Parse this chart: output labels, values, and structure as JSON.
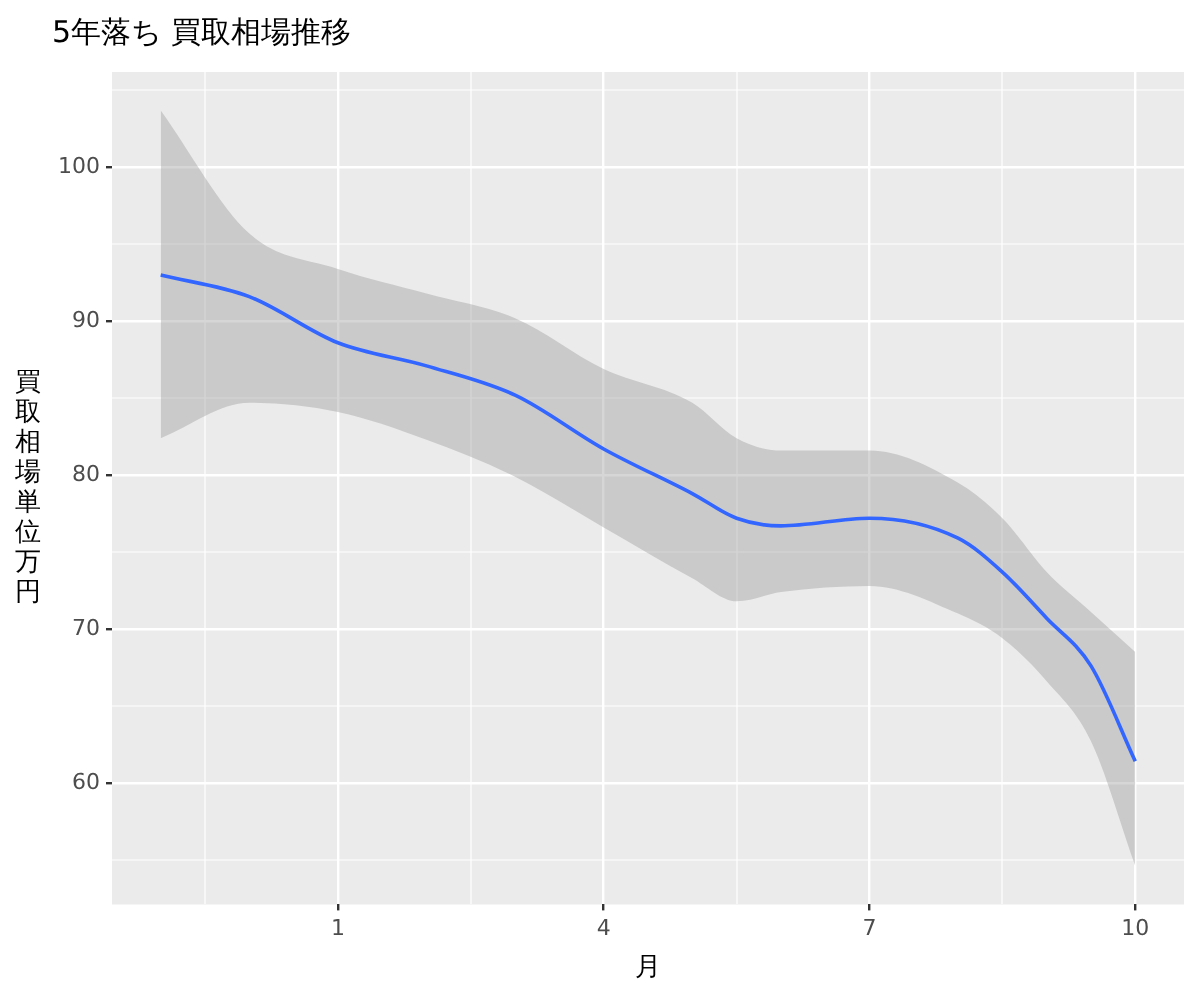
{
  "chart_data": {
    "type": "line",
    "title": "5年落ち 買取相場推移",
    "xlabel": "月",
    "ylabel": "買取相場単位万円",
    "xlim": [
      -1.55,
      10.55
    ],
    "ylim": [
      52.1,
      106.2
    ],
    "xticks": [
      {
        "value": -0.5,
        "label": null
      },
      1,
      {
        "value": 2.5,
        "label": null
      },
      4,
      {
        "value": 5.5,
        "label": null
      },
      7,
      {
        "value": 8.5,
        "label": null
      },
      10
    ],
    "yticks": [
      {
        "value": 55,
        "label": null
      },
      60,
      {
        "value": 65,
        "label": null
      },
      70,
      {
        "value": 75,
        "label": null
      },
      80,
      {
        "value": 85,
        "label": null
      },
      90,
      {
        "value": 95,
        "label": null
      },
      100,
      {
        "value": 105,
        "label": null
      }
    ],
    "grid": true,
    "legend": false,
    "marker": "none",
    "line_style": "solid",
    "x": [
      -1,
      0,
      1,
      2,
      3,
      4,
      5,
      5.5,
      6,
      7,
      8,
      8.5,
      9,
      9.5,
      10
    ],
    "series": [
      {
        "color": "#3366ff",
        "values": [
          93.0,
          91.6,
          88.6,
          87.1,
          85.2,
          81.7,
          78.8,
          77.2,
          76.7,
          77.2,
          75.9,
          73.7,
          70.7,
          67.6,
          61.4
        ],
        "lower": [
          82.4,
          84.7,
          84.1,
          82.3,
          79.9,
          76.6,
          73.3,
          71.8,
          72.4,
          72.8,
          71.0,
          69.4,
          66.6,
          62.7,
          54.6
        ],
        "upper": [
          103.7,
          95.7,
          93.4,
          91.8,
          90.2,
          86.9,
          84.7,
          82.4,
          81.6,
          81.6,
          79.5,
          77.2,
          73.7,
          71.1,
          68.5
        ]
      }
    ]
  }
}
